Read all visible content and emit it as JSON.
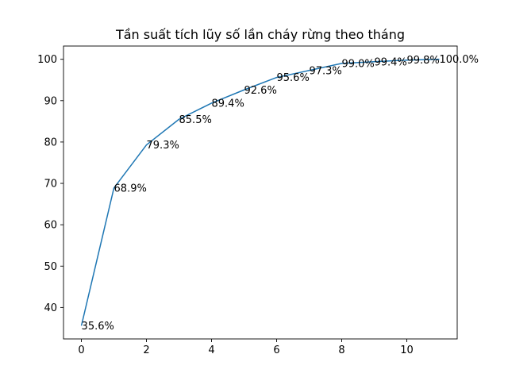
{
  "chart_data": {
    "type": "line",
    "title": "Tần suất tích lũy số lần cháy rừng theo tháng",
    "xlabel": "",
    "ylabel": "",
    "x": [
      0,
      1,
      2,
      3,
      4,
      5,
      6,
      7,
      8,
      9,
      10,
      11
    ],
    "series": [
      {
        "values": [
          35.6,
          68.9,
          79.3,
          85.5,
          89.4,
          92.6,
          95.6,
          97.3,
          99.0,
          99.4,
          99.8,
          100.0
        ],
        "color": "#1f77b4"
      }
    ],
    "data_labels": [
      "35.6%",
      "68.9%",
      "79.3%",
      "85.5%",
      "89.4%",
      "92.6%",
      "95.6%",
      "97.3%",
      "99.0%",
      "99.4%",
      "99.8%",
      "100.0%"
    ],
    "xlim": [
      -0.55,
      11.55
    ],
    "ylim": [
      32.4,
      103.2
    ],
    "xticks": [
      0,
      2,
      4,
      6,
      8,
      10
    ],
    "yticks": [
      40,
      50,
      60,
      70,
      80,
      90,
      100
    ],
    "grid": false,
    "legend": "none"
  }
}
